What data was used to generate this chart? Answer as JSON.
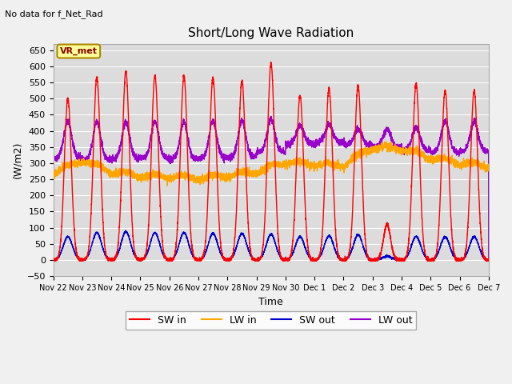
{
  "title": "Short/Long Wave Radiation",
  "subtitle": "No data for f_Net_Rad",
  "station_label": "VR_met",
  "ylabel": "(W/m2)",
  "xlabel": "Time",
  "ylim": [
    -50,
    670
  ],
  "yticks": [
    -50,
    0,
    50,
    100,
    150,
    200,
    250,
    300,
    350,
    400,
    450,
    500,
    550,
    600,
    650
  ],
  "xtick_labels": [
    "Nov 22",
    "Nov 23",
    "Nov 24",
    "Nov 25",
    "Nov 26",
    "Nov 27",
    "Nov 28",
    "Nov 29",
    "Nov 30",
    "Dec 1",
    "Dec 2",
    "Dec 3",
    "Dec 4",
    "Dec 5",
    "Dec 6",
    "Dec 7"
  ],
  "sw_in_color": "#FF0000",
  "lw_in_color": "#FFA500",
  "sw_out_color": "#0000CC",
  "lw_out_color": "#9900CC",
  "background_color": "#E8E8E8",
  "plot_bg_color": "#DCDCDC",
  "grid_color": "#FFFFFF",
  "line_width": 1.0,
  "title_fontsize": 11,
  "axis_fontsize": 9,
  "tick_fontsize": 8,
  "n_days": 15,
  "pts_per_day": 288,
  "sw_in_peaks": [
    500,
    565,
    585,
    570,
    570,
    565,
    555,
    610,
    510,
    530,
    540,
    110,
    545,
    525,
    525
  ],
  "sw_in_sigma": 0.12,
  "sw_out_peaks": [
    72,
    85,
    88,
    85,
    85,
    83,
    82,
    80,
    72,
    75,
    78,
    12,
    73,
    72,
    72
  ],
  "sw_out_sigma": 0.16,
  "lw_in_base": [
    260,
    300,
    265,
    252,
    250,
    245,
    252,
    265,
    295,
    288,
    285,
    340,
    335,
    308,
    292,
    282
  ],
  "lw_out_base": [
    322,
    308,
    312,
    318,
    312,
    312,
    318,
    318,
    350,
    370,
    358,
    355,
    345,
    335,
    332,
    342
  ],
  "lw_out_peaks": [
    430,
    428,
    425,
    428,
    426,
    430,
    432,
    435,
    415,
    420,
    405,
    405,
    410,
    430,
    430,
    425
  ],
  "lw_peak_sigma": 0.13
}
